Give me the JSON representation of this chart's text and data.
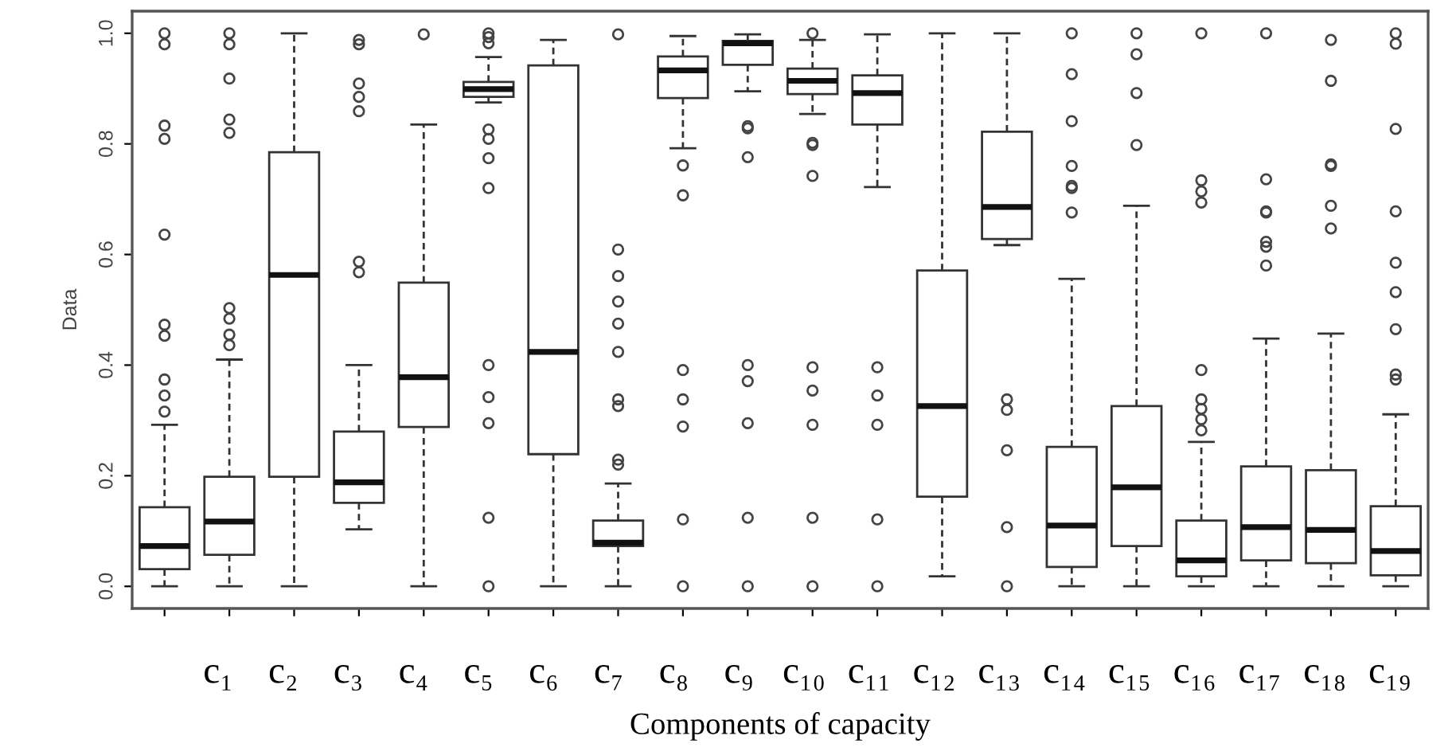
{
  "chart_data": {
    "type": "box",
    "xlabel": "Components of capacity",
    "ylabel": "Data",
    "categories": [
      null,
      null,
      null,
      null,
      null,
      null,
      null,
      null,
      null,
      null,
      null,
      null,
      null,
      null,
      null,
      null,
      null,
      null,
      null,
      null
    ],
    "boxes": [
      {
        "low": 0,
        "q1": 0.031,
        "median": 0.073,
        "q3": 0.143,
        "high": 0.292,
        "outliers": [
          1.0,
          0.98,
          0.833,
          0.809,
          0.636,
          0.473,
          0.453,
          0.374,
          0.345,
          0.316
        ]
      },
      {
        "low": 0,
        "q1": 0.057,
        "median": 0.117,
        "q3": 0.198,
        "high": 0.41,
        "outliers": [
          1.0,
          0.98,
          0.918,
          0.844,
          0.82,
          0.503,
          0.484,
          0.455,
          0.436
        ]
      },
      {
        "low": 0,
        "q1": 0.198,
        "median": 0.563,
        "q3": 0.785,
        "high": 1.0
      },
      {
        "low": 0.103,
        "q1": 0.151,
        "median": 0.188,
        "q3": 0.28,
        "high": 0.4,
        "outliers": [
          0.988,
          0.98,
          0.909,
          0.885,
          0.859,
          0.587,
          0.568
        ]
      },
      {
        "low": 0,
        "q1": 0.288,
        "median": 0.378,
        "q3": 0.549,
        "high": 0.835,
        "outliers": [
          0.998
        ]
      },
      {
        "low": 0.875,
        "q1": 0.885,
        "median": 0.899,
        "q3": 0.912,
        "high": 0.957,
        "outliers": [
          1.0,
          0.993,
          0.982,
          0.826,
          0.809,
          0.774,
          0.72,
          0.4,
          0.342,
          0.295,
          0.124,
          0.0
        ]
      },
      {
        "low": 0,
        "q1": 0.239,
        "median": 0.424,
        "q3": 0.942,
        "high": 0.988
      },
      {
        "low": 0,
        "q1": 0.073,
        "median": 0.079,
        "q3": 0.119,
        "high": 0.186,
        "outliers": [
          0.998,
          0.609,
          0.561,
          0.515,
          0.475,
          0.424,
          0.338,
          0.326,
          0.229,
          0.22
        ]
      },
      {
        "low": 0.792,
        "q1": 0.883,
        "median": 0.933,
        "q3": 0.958,
        "high": 0.995,
        "outliers": [
          0.761,
          0.707,
          0.391,
          0.338,
          0.289,
          0.121,
          0.0
        ]
      },
      {
        "low": 0.895,
        "q1": 0.943,
        "median": 0.982,
        "q3": 0.986,
        "high": 0.998,
        "outliers": [
          0.832,
          0.828,
          0.776,
          0.4,
          0.371,
          0.295,
          0.124,
          0.0
        ]
      },
      {
        "low": 0.854,
        "q1": 0.89,
        "median": 0.914,
        "q3": 0.936,
        "high": 0.988,
        "outliers": [
          1.0,
          0.802,
          0.798,
          0.742,
          0.396,
          0.354,
          0.292,
          0.124,
          0.0
        ]
      },
      {
        "low": 0.722,
        "q1": 0.835,
        "median": 0.892,
        "q3": 0.924,
        "high": 0.998,
        "outliers": [
          0.396,
          0.345,
          0.292,
          0.121,
          0.0
        ]
      },
      {
        "low": 0.018,
        "q1": 0.162,
        "median": 0.326,
        "q3": 0.571,
        "high": 1.0
      },
      {
        "low": 0.617,
        "q1": 0.628,
        "median": 0.686,
        "q3": 0.822,
        "high": 1.0,
        "outliers": [
          0.338,
          0.319,
          0.246,
          0.107,
          0.0
        ]
      },
      {
        "low": 0,
        "q1": 0.035,
        "median": 0.11,
        "q3": 0.252,
        "high": 0.556,
        "outliers": [
          1.0,
          0.926,
          0.841,
          0.76,
          0.724,
          0.72,
          0.676
        ]
      },
      {
        "low": 0,
        "q1": 0.073,
        "median": 0.179,
        "q3": 0.326,
        "high": 0.688,
        "outliers": [
          1.0,
          0.962,
          0.892,
          0.798
        ]
      },
      {
        "low": 0,
        "q1": 0.018,
        "median": 0.047,
        "q3": 0.119,
        "high": 0.261,
        "outliers": [
          1.0,
          0.734,
          0.714,
          0.694,
          0.391,
          0.338,
          0.321,
          0.302,
          0.282
        ]
      },
      {
        "low": 0,
        "q1": 0.047,
        "median": 0.107,
        "q3": 0.217,
        "high": 0.448,
        "outliers": [
          1.0,
          0.736,
          0.678,
          0.676,
          0.623,
          0.614,
          0.58
        ]
      },
      {
        "low": 0,
        "q1": 0.042,
        "median": 0.102,
        "q3": 0.21,
        "high": 0.457,
        "outliers": [
          0.988,
          0.914,
          0.763,
          0.76,
          0.688,
          0.647
        ]
      },
      {
        "low": 0,
        "q1": 0.02,
        "median": 0.064,
        "q3": 0.145,
        "high": 0.311,
        "outliers": [
          1.0,
          0.981,
          0.827,
          0.678,
          0.585,
          0.532,
          0.465,
          0.383,
          0.374
        ]
      }
    ],
    "ylim": [
      -0.04,
      1.04
    ],
    "yticks": [
      {
        "value": 0,
        "label": "0.0"
      },
      {
        "value": 0.2,
        "label": "0.2"
      },
      {
        "value": 0.4,
        "label": "0.4"
      },
      {
        "value": 0.6,
        "label": "0.6"
      },
      {
        "value": 0.8,
        "label": "0.8"
      },
      {
        "value": 1.0,
        "label": "1.0"
      }
    ],
    "tick_labels": "y",
    "grid": false,
    "legend": false,
    "annotations": [
      "c₁",
      "c₂",
      "c₃",
      "c₄",
      "c₅",
      "c₆",
      "c₇",
      "c₈",
      "c₉",
      "c₁₀",
      "c₁₁",
      "c₁₂",
      "c₁₃",
      "c₁₄",
      "c₁₅",
      "c₁₆",
      "c₁₇",
      "c₁₈",
      "c₁₉"
    ]
  }
}
